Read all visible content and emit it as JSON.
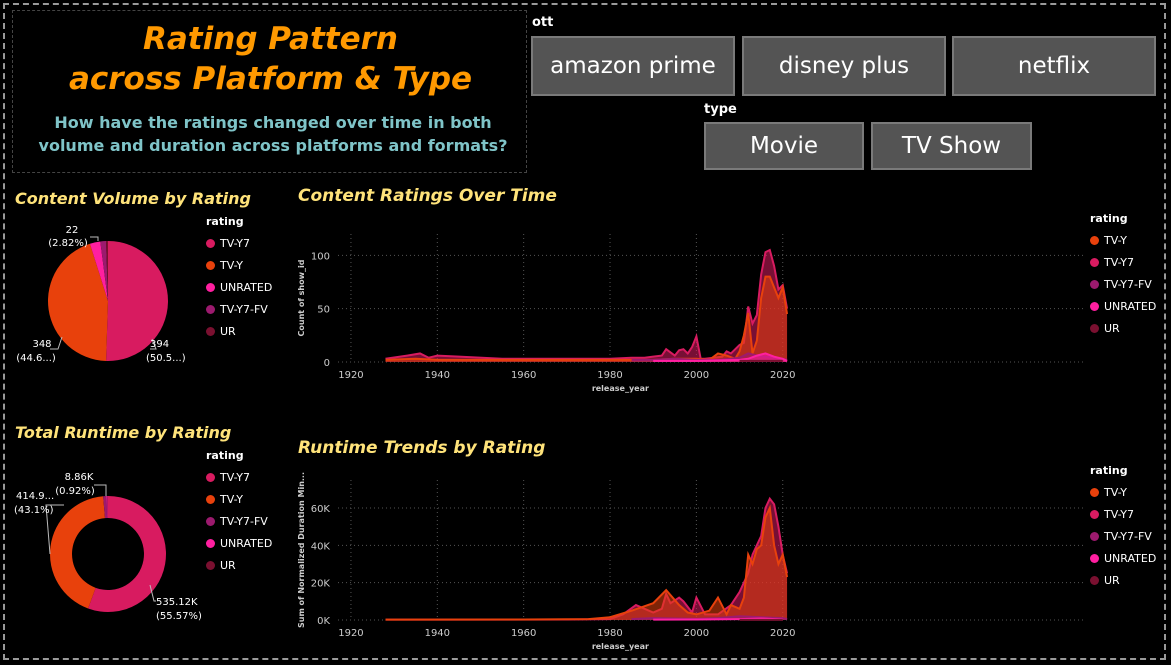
{
  "header": {
    "title_line1": "Rating Pattern",
    "title_line2": "across Platform & Type",
    "subtitle": "How have the ratings changed over time in both volume and duration across platforms and formats?"
  },
  "slicers": {
    "ott": {
      "label": "ott",
      "options": [
        "amazon prime",
        "disney plus",
        "netflix"
      ]
    },
    "type": {
      "label": "type",
      "options": [
        "Movie",
        "TV Show"
      ]
    }
  },
  "colors": {
    "TV-Y7": "#d81b60",
    "TV-Y": "#e8410c",
    "UNRATED": "#ff1fa0",
    "TV-Y7-FV": "#9c1a6e",
    "UR": "#7a1030"
  },
  "volume_pie": {
    "title": "Content Volume by Rating",
    "legend_title": "rating",
    "legend": [
      "TV-Y7",
      "TV-Y",
      "UNRATED",
      "TV-Y7-FV",
      "UR"
    ],
    "labels": {
      "top_value": "22",
      "top_pct": "(2.82%)",
      "left_value": "348",
      "left_pct": "(44.6...)",
      "right_value": "394",
      "right_pct": "(50.5...)"
    }
  },
  "runtime_pie": {
    "title": "Total Runtime by Rating",
    "legend_title": "rating",
    "legend": [
      "TV-Y7",
      "TV-Y",
      "TV-Y7-FV",
      "UNRATED",
      "UR"
    ],
    "labels": {
      "top_value": "8.86K",
      "top_pct": "(0.92%)",
      "left_value": "414.9...",
      "left_pct": "(43.1%)",
      "right_value": "535.12K",
      "right_pct": "(55.57%)"
    }
  },
  "ratings_time": {
    "title": "Content Ratings Over Time",
    "legend_title": "rating",
    "legend": [
      "TV-Y",
      "TV-Y7",
      "TV-Y7-FV",
      "UNRATED",
      "UR"
    ],
    "xlabel": "release_year",
    "ylabel": "Count of show_id"
  },
  "runtime_time": {
    "title": "Runtime Trends by Rating",
    "legend_title": "rating",
    "legend": [
      "TV-Y",
      "TV-Y7",
      "TV-Y7-FV",
      "UNRATED",
      "UR"
    ],
    "xlabel": "release_year",
    "ylabel": "Sum of Normalized Duration Min..."
  },
  "chart_data": [
    {
      "type": "pie",
      "title": "Content Volume by Rating",
      "categories": [
        "TV-Y7",
        "TV-Y",
        "UNRATED",
        "TV-Y7-FV",
        "UR"
      ],
      "values": [
        394,
        348,
        22,
        12,
        4
      ]
    },
    {
      "type": "pie",
      "title": "Total Runtime by Rating",
      "categories": [
        "TV-Y7",
        "TV-Y",
        "TV-Y7-FV",
        "UNRATED",
        "UR"
      ],
      "values": [
        535120,
        414900,
        8860,
        3000,
        1000
      ]
    },
    {
      "type": "area",
      "title": "Content Ratings Over Time",
      "xlabel": "release_year",
      "ylabel": "Count of show_id",
      "xlim": [
        1917,
        2090
      ],
      "ylim": [
        0,
        120
      ],
      "xticks": [
        1920,
        1940,
        1960,
        1980,
        2000,
        2020
      ],
      "yticks": [
        0,
        50,
        100
      ],
      "series": [
        {
          "name": "TV-Y7",
          "x": [
            1928,
            1933,
            1936,
            1938,
            1940,
            1945,
            1955,
            1960,
            1970,
            1980,
            1985,
            1988,
            1990,
            1992,
            1993,
            1995,
            1996,
            1997,
            1998,
            1999,
            2000,
            2001,
            2002,
            2004,
            2006,
            2007,
            2008,
            2009,
            2010,
            2011,
            2012,
            2013,
            2014,
            2015,
            2016,
            2017,
            2018,
            2019,
            2020,
            2021
          ],
          "y": [
            3,
            6,
            8,
            4,
            6,
            5,
            3,
            3,
            3,
            3,
            4,
            4,
            5,
            6,
            12,
            6,
            11,
            12,
            8,
            14,
            24,
            3,
            3,
            4,
            5,
            10,
            8,
            12,
            16,
            18,
            52,
            36,
            44,
            82,
            103,
            105,
            90,
            68,
            72,
            50
          ]
        },
        {
          "name": "TV-Y",
          "x": [
            1928,
            1935,
            1940,
            1950,
            1960,
            1970,
            1980,
            1985,
            1990,
            1995,
            2000,
            2003,
            2005,
            2007,
            2009,
            2010,
            2011,
            2012,
            2013,
            2014,
            2015,
            2016,
            2017,
            2018,
            2019,
            2020,
            2021
          ],
          "y": [
            2,
            3,
            2,
            2,
            2,
            2,
            2,
            2,
            2,
            3,
            3,
            2,
            8,
            6,
            3,
            10,
            25,
            46,
            8,
            20,
            60,
            80,
            80,
            70,
            60,
            70,
            45
          ]
        },
        {
          "name": "TV-Y7-FV",
          "x": [
            1985,
            1990,
            1995,
            2000,
            2005,
            2008,
            2010,
            2012,
            2014,
            2016,
            2018,
            2020,
            2021
          ],
          "y": [
            2,
            2,
            3,
            2,
            2,
            3,
            4,
            8,
            6,
            5,
            4,
            3,
            2
          ]
        },
        {
          "name": "UNRATED",
          "x": [
            1990,
            2000,
            2010,
            2012,
            2014,
            2016,
            2018,
            2020,
            2021
          ],
          "y": [
            1,
            1,
            2,
            3,
            6,
            8,
            5,
            3,
            1
          ]
        },
        {
          "name": "UR",
          "x": [
            2010,
            2015,
            2020
          ],
          "y": [
            1,
            1,
            1
          ]
        }
      ]
    },
    {
      "type": "area",
      "title": "Runtime Trends by Rating",
      "xlabel": "release_year",
      "ylabel": "Sum of Normalized Duration Min...",
      "xlim": [
        1917,
        2090
      ],
      "ylim": [
        0,
        75000
      ],
      "xticks": [
        1920,
        1940,
        1960,
        1980,
        2000,
        2020
      ],
      "yticks": [
        0,
        20000,
        40000,
        60000
      ],
      "ytick_labels": [
        "0K",
        "20K",
        "40K",
        "60K"
      ],
      "series": [
        {
          "name": "TV-Y7",
          "x": [
            1928,
            1950,
            1970,
            1980,
            1983,
            1986,
            1990,
            1992,
            1993,
            1994,
            1996,
            1997,
            1999,
            2000,
            2002,
            2005,
            2008,
            2010,
            2011,
            2012,
            2013,
            2014,
            2015,
            2016,
            2017,
            2018,
            2019,
            2020,
            2021
          ],
          "y": [
            200,
            200,
            300,
            500,
            3000,
            8000,
            4000,
            6000,
            14000,
            9000,
            12000,
            10000,
            4000,
            12000,
            3000,
            3000,
            8000,
            15000,
            20000,
            25000,
            35000,
            40000,
            45000,
            60000,
            65000,
            62000,
            50000,
            35000,
            25000
          ]
        },
        {
          "name": "TV-Y",
          "x": [
            1928,
            1960,
            1975,
            1980,
            1985,
            1990,
            1993,
            1996,
            1998,
            2000,
            2003,
            2005,
            2007,
            2008,
            2010,
            2011,
            2012,
            2013,
            2014,
            2015,
            2016,
            2017,
            2018,
            2019,
            2020,
            2021
          ],
          "y": [
            200,
            300,
            500,
            1500,
            5000,
            9000,
            16000,
            8000,
            4000,
            3000,
            5000,
            12000,
            3000,
            8000,
            6000,
            12000,
            35000,
            30000,
            38000,
            40000,
            55000,
            60000,
            40000,
            30000,
            35000,
            23000
          ]
        },
        {
          "name": "TV-Y7-FV",
          "x": [
            1985,
            1990,
            1995,
            2000,
            2005,
            2010,
            2015,
            2020,
            2021
          ],
          "y": [
            500,
            1000,
            800,
            600,
            1000,
            2000,
            1500,
            1000,
            500
          ]
        },
        {
          "name": "UNRATED",
          "x": [
            1990,
            2000,
            2010,
            2015,
            2020
          ],
          "y": [
            200,
            300,
            500,
            800,
            300
          ]
        },
        {
          "name": "UR",
          "x": [
            2010,
            2015,
            2020
          ],
          "y": [
            100,
            100,
            100
          ]
        }
      ]
    }
  ]
}
